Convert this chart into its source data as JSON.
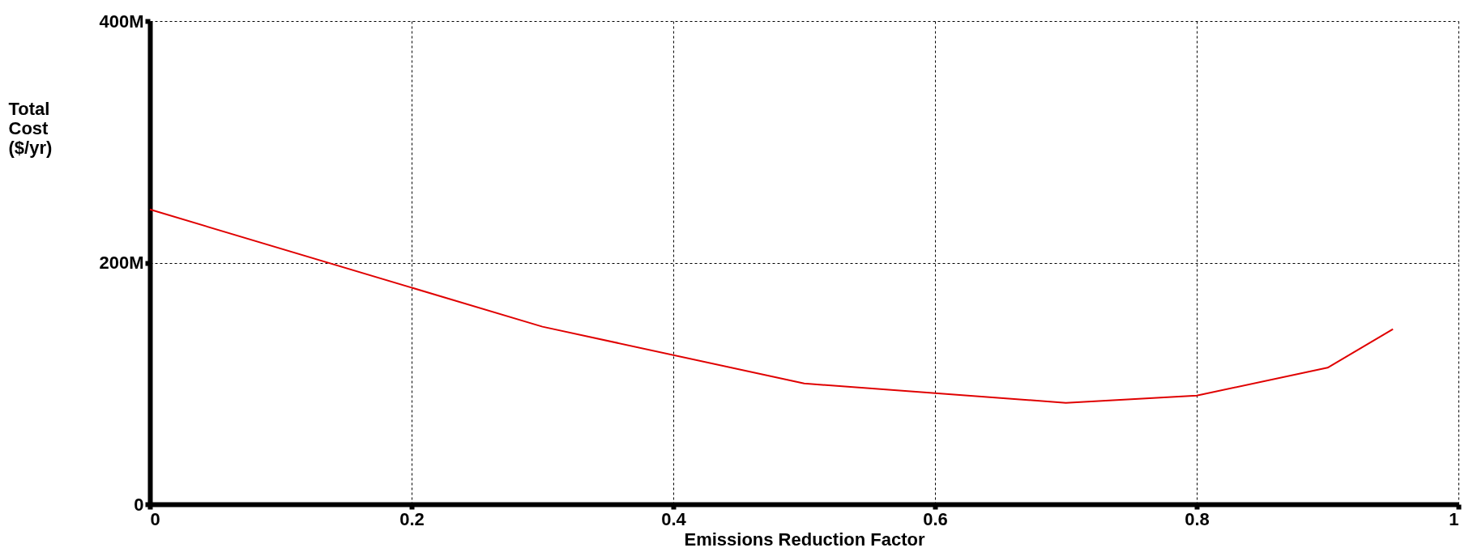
{
  "chart_data": {
    "type": "line",
    "xlabel": "Emissions Reduction Factor",
    "ylabel": "Total Cost ($/yr)",
    "x": [
      0,
      0.3,
      0.5,
      0.7,
      0.8,
      0.9,
      0.95
    ],
    "series": [
      {
        "color": "#e00000",
        "values": [
          244000000,
          147000000,
          100000000,
          84000000,
          90000000,
          113000000,
          145000000
        ]
      }
    ],
    "xlim": [
      0,
      1
    ],
    "xticks": [
      0,
      0.2,
      0.4,
      0.6,
      0.8,
      1
    ],
    "ylim": [
      0,
      400000000
    ],
    "yticks": [
      {
        "value": 0,
        "label": "0"
      },
      {
        "value": 200000000,
        "label": "200M"
      },
      {
        "value": 400000000,
        "label": "400M"
      }
    ],
    "grid": true,
    "marker": "none",
    "line_style": "solid"
  }
}
